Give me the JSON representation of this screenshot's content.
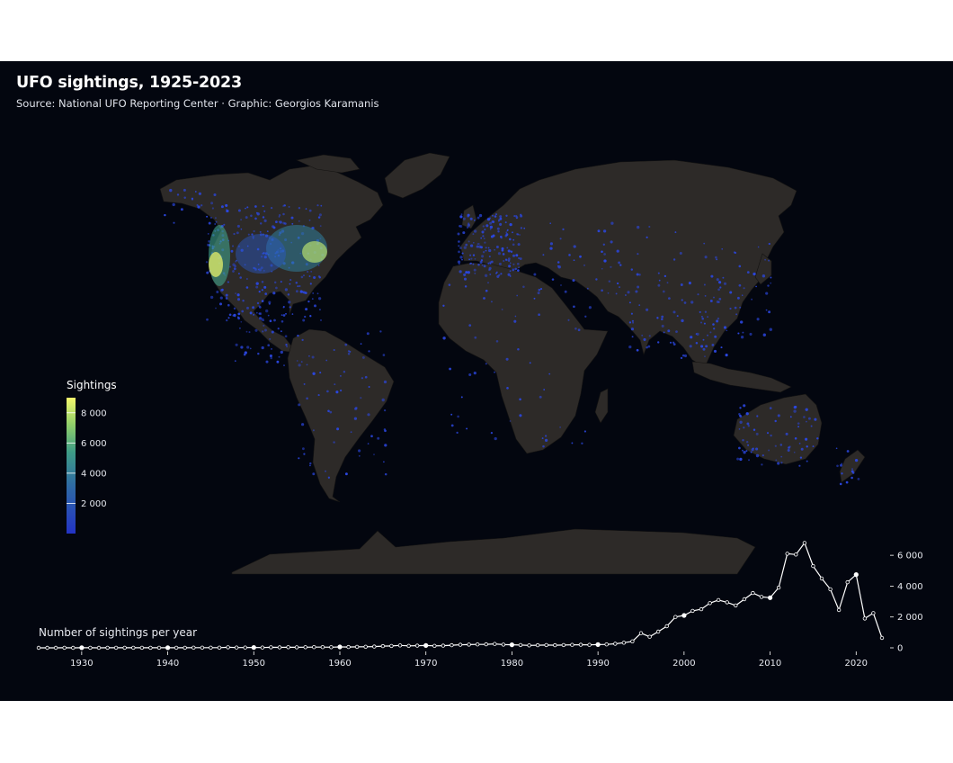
{
  "title": "UFO sightings, 1925-2023",
  "subtitle": "Source: National UFO Reporting Center · Graphic: Georgios Karamanis",
  "colors": {
    "background": "#03060f",
    "land": "#2d2a28",
    "land_border": "#141312",
    "point": "#2b47e0",
    "scale_low": "#2637c9",
    "scale_mid": "#2f7d9a",
    "scale_high": "#f2f76d",
    "line": "#ffffff"
  },
  "legend": {
    "title": "Sightings",
    "ticks": [
      "2 000",
      "4 000",
      "6 000",
      "8 000"
    ],
    "tick_values": [
      2000,
      4000,
      6000,
      8000
    ],
    "max": 9000
  },
  "chart_data": {
    "type": "line",
    "label": "Number of sightings per year",
    "x": [
      1925,
      1926,
      1927,
      1928,
      1929,
      1930,
      1931,
      1932,
      1933,
      1934,
      1935,
      1936,
      1937,
      1938,
      1939,
      1940,
      1941,
      1942,
      1943,
      1944,
      1945,
      1946,
      1947,
      1948,
      1949,
      1950,
      1951,
      1952,
      1953,
      1954,
      1955,
      1956,
      1957,
      1958,
      1959,
      1960,
      1961,
      1962,
      1963,
      1964,
      1965,
      1966,
      1967,
      1968,
      1969,
      1970,
      1971,
      1972,
      1973,
      1974,
      1975,
      1976,
      1977,
      1978,
      1979,
      1980,
      1981,
      1982,
      1983,
      1984,
      1985,
      1986,
      1987,
      1988,
      1989,
      1990,
      1991,
      1992,
      1993,
      1994,
      1995,
      1996,
      1997,
      1998,
      1999,
      2000,
      2001,
      2002,
      2003,
      2004,
      2005,
      2006,
      2007,
      2008,
      2009,
      2010,
      2011,
      2012,
      2013,
      2014,
      2015,
      2016,
      2017,
      2018,
      2019,
      2020,
      2021,
      2022,
      2023
    ],
    "y": [
      2,
      1,
      2,
      3,
      2,
      4,
      3,
      2,
      5,
      3,
      4,
      3,
      6,
      5,
      6,
      8,
      6,
      7,
      9,
      10,
      12,
      14,
      35,
      15,
      18,
      22,
      20,
      35,
      30,
      40,
      35,
      38,
      48,
      45,
      40,
      60,
      55,
      65,
      70,
      80,
      110,
      120,
      160,
      130,
      140,
      150,
      130,
      140,
      170,
      200,
      210,
      220,
      230,
      250,
      210,
      200,
      180,
      160,
      170,
      180,
      170,
      180,
      190,
      200,
      190,
      210,
      220,
      260,
      330,
      420,
      950,
      720,
      1050,
      1400,
      2000,
      2100,
      2400,
      2500,
      2900,
      3100,
      2950,
      2750,
      3150,
      3550,
      3300,
      3250,
      3900,
      6100,
      6050,
      6800,
      5300,
      4500,
      3800,
      2450,
      4250,
      4750,
      1900,
      2250,
      640
    ],
    "xticks": [
      1930,
      1940,
      1950,
      1960,
      1970,
      1980,
      1990,
      2000,
      2010,
      2020
    ],
    "yticks": [
      0,
      2000,
      4000,
      6000
    ],
    "ytick_labels": [
      "0",
      "2 000",
      "4 000",
      "6 000"
    ],
    "xlim": [
      1925,
      2023
    ],
    "ylim": [
      0,
      7000
    ]
  }
}
